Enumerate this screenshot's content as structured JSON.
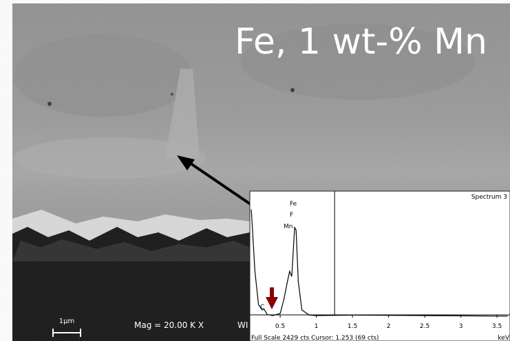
{
  "image": {
    "title": "Fe, 1 wt-% Mn",
    "scale_bar": "1µm",
    "magnification": "Mag =  20.00 K X",
    "truncated_label": "WI"
  },
  "chart_data": {
    "type": "line",
    "title": "Spectrum 3",
    "x_label": "keV",
    "footer": "Full Scale 2429 cts Cursor: 1.253 (69 cts)",
    "cursor": 1.253,
    "annotations": [
      "Fe",
      "F",
      "Mn",
      "C"
    ],
    "x": [
      0.1,
      0.15,
      0.2,
      0.25,
      0.28,
      0.32,
      0.4,
      0.5,
      0.55,
      0.6,
      0.63,
      0.66,
      0.7,
      0.72,
      0.75,
      0.8,
      0.9,
      1.0,
      1.5,
      2.0,
      2.5,
      3.0,
      3.5,
      3.65
    ],
    "values": [
      2100,
      900,
      250,
      150,
      160,
      60,
      40,
      80,
      350,
      700,
      900,
      800,
      1750,
      1700,
      700,
      150,
      50,
      40,
      50,
      45,
      40,
      35,
      30,
      30
    ],
    "color": "#000000",
    "xlim": [
      0.08,
      3.68
    ],
    "ylim": [
      0,
      2429
    ],
    "xticks": [
      0.5,
      1,
      1.5,
      2,
      2.5,
      3,
      3.5
    ]
  }
}
